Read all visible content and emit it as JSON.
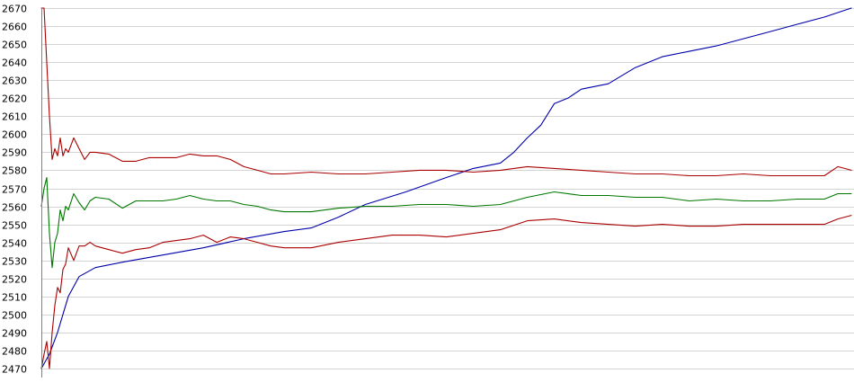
{
  "chart_data": {
    "type": "line",
    "title": "",
    "xlabel": "",
    "ylabel": "",
    "ylim": [
      2470,
      2670
    ],
    "yticks": [
      2470,
      2480,
      2490,
      2500,
      2510,
      2520,
      2530,
      2540,
      2550,
      2560,
      2570,
      2580,
      2590,
      2600,
      2610,
      2620,
      2630,
      2640,
      2650,
      2660,
      2670
    ],
    "xlim": [
      0,
      300
    ],
    "grid": true,
    "legend": "none",
    "series": [
      {
        "color": "#0000aa",
        "x": [
          0,
          3,
          6,
          10,
          14,
          20,
          30,
          45,
          60,
          75,
          90,
          100,
          110,
          120,
          135,
          150,
          160,
          170,
          175,
          180,
          185,
          190,
          195,
          200,
          210,
          220,
          230,
          240,
          250,
          260,
          270,
          280,
          290,
          300
        ],
        "y": [
          2470,
          2478,
          2490,
          2510,
          2521,
          2526,
          2529,
          2533,
          2537,
          2542,
          2546,
          2548,
          2554,
          2561,
          2568,
          2576,
          2581,
          2584,
          2590,
          2598,
          2605,
          2617,
          2620,
          2625,
          2628,
          2637,
          2643,
          2646,
          2649,
          2653,
          2657,
          2661,
          2665,
          2670
        ]
      },
      {
        "color": "#aa0000",
        "x": [
          0,
          1,
          2,
          3,
          4,
          5,
          6,
          7,
          8,
          9,
          10,
          12,
          14,
          16,
          18,
          20,
          25,
          30,
          35,
          40,
          45,
          50,
          55,
          60,
          65,
          70,
          75,
          80,
          85,
          90,
          100,
          110,
          120,
          130,
          140,
          150,
          160,
          170,
          180,
          190,
          200,
          210,
          220,
          230,
          240,
          250,
          260,
          270,
          280,
          290,
          295,
          300
        ],
        "y": [
          2670,
          2670,
          2640,
          2610,
          2586,
          2592,
          2588,
          2598,
          2588,
          2592,
          2590,
          2598,
          2592,
          2586,
          2590,
          2590,
          2589,
          2585,
          2585,
          2587,
          2587,
          2587,
          2589,
          2588,
          2588,
          2586,
          2582,
          2580,
          2578,
          2578,
          2579,
          2578,
          2578,
          2579,
          2580,
          2580,
          2579,
          2580,
          2582,
          2581,
          2580,
          2579,
          2578,
          2578,
          2577,
          2577,
          2578,
          2577,
          2577,
          2577,
          2582,
          2580
        ]
      },
      {
        "color": "#007700",
        "x": [
          0,
          1,
          2,
          3,
          4,
          5,
          6,
          7,
          8,
          9,
          10,
          12,
          14,
          16,
          18,
          20,
          25,
          30,
          35,
          40,
          45,
          50,
          55,
          60,
          65,
          70,
          75,
          80,
          85,
          90,
          100,
          110,
          120,
          130,
          140,
          150,
          160,
          170,
          180,
          190,
          200,
          210,
          220,
          230,
          240,
          250,
          260,
          270,
          280,
          290,
          295,
          300
        ],
        "y": [
          2560,
          2570,
          2576,
          2545,
          2526,
          2540,
          2545,
          2558,
          2552,
          2560,
          2558,
          2567,
          2562,
          2558,
          2563,
          2565,
          2564,
          2559,
          2563,
          2563,
          2563,
          2564,
          2566,
          2564,
          2563,
          2563,
          2561,
          2560,
          2558,
          2557,
          2557,
          2559,
          2560,
          2560,
          2561,
          2561,
          2560,
          2561,
          2565,
          2568,
          2566,
          2566,
          2565,
          2565,
          2563,
          2564,
          2563,
          2563,
          2564,
          2564,
          2567,
          2567
        ]
      },
      {
        "color": "#aa0000",
        "x": [
          0,
          1,
          2,
          3,
          4,
          5,
          6,
          7,
          8,
          9,
          10,
          12,
          14,
          16,
          18,
          20,
          25,
          30,
          35,
          40,
          45,
          50,
          55,
          60,
          65,
          70,
          75,
          80,
          85,
          90,
          100,
          110,
          120,
          130,
          140,
          150,
          160,
          170,
          180,
          190,
          200,
          210,
          220,
          230,
          240,
          250,
          260,
          270,
          280,
          290,
          295,
          300
        ],
        "y": [
          2470,
          2478,
          2485,
          2470,
          2490,
          2505,
          2515,
          2512,
          2525,
          2528,
          2537,
          2530,
          2538,
          2538,
          2540,
          2538,
          2536,
          2534,
          2536,
          2537,
          2540,
          2541,
          2542,
          2544,
          2540,
          2543,
          2542,
          2540,
          2538,
          2537,
          2537,
          2540,
          2542,
          2544,
          2544,
          2543,
          2545,
          2547,
          2552,
          2553,
          2551,
          2550,
          2549,
          2550,
          2549,
          2549,
          2550,
          2550,
          2550,
          2550,
          2553,
          2555
        ]
      }
    ]
  }
}
